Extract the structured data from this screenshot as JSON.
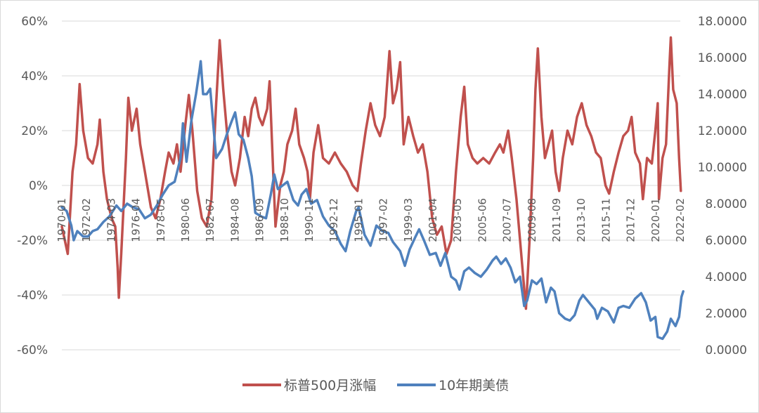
{
  "chart_data": {
    "type": "line",
    "title": "",
    "xlabel": "",
    "ylabel_left": "",
    "ylabel_right": "",
    "x_tick_labels": [
      "1970-01",
      "1972-02",
      "1974-03",
      "1976-04",
      "1978-05",
      "1980-06",
      "1982-07",
      "1984-08",
      "1986-09",
      "1988-10",
      "1990-11",
      "1992-12",
      "1995-01",
      "1997-02",
      "1999-03",
      "2001-04",
      "2003-05",
      "2005-06",
      "2007-07",
      "2009-08",
      "2011-09",
      "2013-10",
      "2015-11",
      "2017-12",
      "2020-01",
      "2022-02"
    ],
    "y_left": {
      "min": -0.6,
      "max": 0.6,
      "ticks": [
        -0.6,
        -0.4,
        -0.2,
        0,
        0.2,
        0.4,
        0.6
      ],
      "tick_labels": [
        "-60%",
        "-40%",
        "-20%",
        "0%",
        "20%",
        "40%",
        "60%"
      ]
    },
    "y_right": {
      "min": 0,
      "max": 18,
      "ticks": [
        0,
        2,
        4,
        6,
        8,
        10,
        12,
        14,
        16,
        18
      ],
      "tick_labels": [
        "0.0000",
        "2.0000",
        "4.0000",
        "6.0000",
        "8.0000",
        "10.0000",
        "12.0000",
        "14.0000",
        "16.0000",
        "18.0000"
      ]
    },
    "grid": true,
    "legend_position": "bottom",
    "series": [
      {
        "name": "标普500月涨幅",
        "color": "#c0504d",
        "axis": "left",
        "points": [
          [
            1970.0,
            -0.15
          ],
          [
            1970.5,
            -0.25
          ],
          [
            1970.9,
            0.05
          ],
          [
            1971.2,
            0.15
          ],
          [
            1971.5,
            0.37
          ],
          [
            1971.8,
            0.2
          ],
          [
            1972.2,
            0.1
          ],
          [
            1972.6,
            0.08
          ],
          [
            1973.0,
            0.15
          ],
          [
            1973.2,
            0.24
          ],
          [
            1973.5,
            0.05
          ],
          [
            1973.8,
            -0.05
          ],
          [
            1974.2,
            -0.12
          ],
          [
            1974.5,
            -0.15
          ],
          [
            1974.7,
            -0.3
          ],
          [
            1974.8,
            -0.41
          ],
          [
            1975.0,
            -0.25
          ],
          [
            1975.4,
            0.1
          ],
          [
            1975.6,
            0.32
          ],
          [
            1975.9,
            0.2
          ],
          [
            1976.3,
            0.28
          ],
          [
            1976.6,
            0.15
          ],
          [
            1977.0,
            0.05
          ],
          [
            1977.5,
            -0.08
          ],
          [
            1977.9,
            -0.12
          ],
          [
            1978.3,
            -0.05
          ],
          [
            1978.7,
            0.05
          ],
          [
            1979.0,
            0.12
          ],
          [
            1979.4,
            0.08
          ],
          [
            1979.7,
            0.15
          ],
          [
            1980.0,
            0.05
          ],
          [
            1980.4,
            0.22
          ],
          [
            1980.7,
            0.33
          ],
          [
            1981.0,
            0.2
          ],
          [
            1981.4,
            -0.02
          ],
          [
            1981.8,
            -0.12
          ],
          [
            1982.2,
            -0.15
          ],
          [
            1982.6,
            -0.05
          ],
          [
            1983.0,
            0.3
          ],
          [
            1983.3,
            0.53
          ],
          [
            1983.6,
            0.35
          ],
          [
            1983.9,
            0.2
          ],
          [
            1984.3,
            0.05
          ],
          [
            1984.6,
            0.0
          ],
          [
            1985.0,
            0.1
          ],
          [
            1985.4,
            0.25
          ],
          [
            1985.7,
            0.18
          ],
          [
            1986.0,
            0.28
          ],
          [
            1986.3,
            0.32
          ],
          [
            1986.6,
            0.25
          ],
          [
            1986.9,
            0.22
          ],
          [
            1987.3,
            0.28
          ],
          [
            1987.5,
            0.38
          ],
          [
            1987.8,
            0.05
          ],
          [
            1988.0,
            -0.15
          ],
          [
            1988.4,
            0.0
          ],
          [
            1988.7,
            0.05
          ],
          [
            1989.0,
            0.15
          ],
          [
            1989.4,
            0.2
          ],
          [
            1989.7,
            0.28
          ],
          [
            1990.0,
            0.15
          ],
          [
            1990.4,
            0.1
          ],
          [
            1990.7,
            0.05
          ],
          [
            1990.9,
            -0.05
          ],
          [
            1991.2,
            0.12
          ],
          [
            1991.6,
            0.22
          ],
          [
            1992.0,
            0.1
          ],
          [
            1992.5,
            0.08
          ],
          [
            1993.0,
            0.12
          ],
          [
            1993.5,
            0.08
          ],
          [
            1994.0,
            0.05
          ],
          [
            1994.5,
            0.0
          ],
          [
            1994.9,
            -0.02
          ],
          [
            1995.2,
            0.08
          ],
          [
            1995.6,
            0.2
          ],
          [
            1996.0,
            0.3
          ],
          [
            1996.4,
            0.22
          ],
          [
            1996.8,
            0.18
          ],
          [
            1997.2,
            0.25
          ],
          [
            1997.6,
            0.49
          ],
          [
            1997.9,
            0.3
          ],
          [
            1998.2,
            0.35
          ],
          [
            1998.5,
            0.45
          ],
          [
            1998.8,
            0.15
          ],
          [
            1999.2,
            0.25
          ],
          [
            1999.6,
            0.18
          ],
          [
            2000.0,
            0.12
          ],
          [
            2000.4,
            0.15
          ],
          [
            2000.8,
            0.05
          ],
          [
            2001.2,
            -0.12
          ],
          [
            2001.6,
            -0.18
          ],
          [
            2002.0,
            -0.15
          ],
          [
            2002.4,
            -0.25
          ],
          [
            2002.8,
            -0.2
          ],
          [
            2003.2,
            0.05
          ],
          [
            2003.6,
            0.25
          ],
          [
            2003.9,
            0.36
          ],
          [
            2004.2,
            0.15
          ],
          [
            2004.6,
            0.1
          ],
          [
            2005.0,
            0.08
          ],
          [
            2005.5,
            0.1
          ],
          [
            2006.0,
            0.08
          ],
          [
            2006.5,
            0.12
          ],
          [
            2006.9,
            0.15
          ],
          [
            2007.2,
            0.12
          ],
          [
            2007.6,
            0.2
          ],
          [
            2007.9,
            0.1
          ],
          [
            2008.3,
            -0.05
          ],
          [
            2008.6,
            -0.2
          ],
          [
            2008.9,
            -0.35
          ],
          [
            2009.1,
            -0.45
          ],
          [
            2009.4,
            -0.2
          ],
          [
            2009.7,
            0.1
          ],
          [
            2009.9,
            0.35
          ],
          [
            2010.1,
            0.5
          ],
          [
            2010.4,
            0.25
          ],
          [
            2010.7,
            0.1
          ],
          [
            2011.0,
            0.15
          ],
          [
            2011.3,
            0.2
          ],
          [
            2011.6,
            0.05
          ],
          [
            2011.9,
            -0.02
          ],
          [
            2012.2,
            0.1
          ],
          [
            2012.6,
            0.2
          ],
          [
            2013.0,
            0.15
          ],
          [
            2013.4,
            0.25
          ],
          [
            2013.8,
            0.3
          ],
          [
            2014.2,
            0.22
          ],
          [
            2014.6,
            0.18
          ],
          [
            2015.0,
            0.12
          ],
          [
            2015.4,
            0.1
          ],
          [
            2015.8,
            0.0
          ],
          [
            2016.1,
            -0.03
          ],
          [
            2016.5,
            0.05
          ],
          [
            2016.9,
            0.12
          ],
          [
            2017.3,
            0.18
          ],
          [
            2017.7,
            0.2
          ],
          [
            2018.0,
            0.25
          ],
          [
            2018.3,
            0.12
          ],
          [
            2018.7,
            0.08
          ],
          [
            2018.95,
            -0.05
          ],
          [
            2019.3,
            0.1
          ],
          [
            2019.7,
            0.08
          ],
          [
            2020.0,
            0.2
          ],
          [
            2020.2,
            0.3
          ],
          [
            2020.3,
            -0.05
          ],
          [
            2020.6,
            0.1
          ],
          [
            2020.9,
            0.15
          ],
          [
            2021.2,
            0.45
          ],
          [
            2021.3,
            0.54
          ],
          [
            2021.5,
            0.35
          ],
          [
            2021.8,
            0.3
          ],
          [
            2022.0,
            0.1
          ],
          [
            2022.15,
            -0.02
          ]
        ]
      },
      {
        "name": "10年期美债",
        "color": "#4f81bd",
        "axis": "right",
        "points": [
          [
            1970.0,
            7.8
          ],
          [
            1970.4,
            7.6
          ],
          [
            1970.8,
            6.8
          ],
          [
            1971.0,
            6.0
          ],
          [
            1971.3,
            6.5
          ],
          [
            1971.8,
            6.2
          ],
          [
            1972.2,
            6.2
          ],
          [
            1972.6,
            6.5
          ],
          [
            1973.0,
            6.6
          ],
          [
            1973.5,
            7.0
          ],
          [
            1974.0,
            7.3
          ],
          [
            1974.6,
            7.9
          ],
          [
            1975.0,
            7.6
          ],
          [
            1975.5,
            8.0
          ],
          [
            1976.0,
            7.8
          ],
          [
            1976.5,
            7.7
          ],
          [
            1977.0,
            7.2
          ],
          [
            1977.5,
            7.4
          ],
          [
            1978.0,
            7.9
          ],
          [
            1978.5,
            8.5
          ],
          [
            1979.0,
            9.0
          ],
          [
            1979.5,
            9.2
          ],
          [
            1980.0,
            10.5
          ],
          [
            1980.2,
            12.4
          ],
          [
            1980.5,
            10.3
          ],
          [
            1980.9,
            12.5
          ],
          [
            1981.3,
            14.0
          ],
          [
            1981.6,
            15.3
          ],
          [
            1981.7,
            15.8
          ],
          [
            1981.9,
            14.0
          ],
          [
            1982.2,
            14.0
          ],
          [
            1982.5,
            14.3
          ],
          [
            1982.8,
            12.0
          ],
          [
            1983.0,
            10.5
          ],
          [
            1983.5,
            11.0
          ],
          [
            1983.9,
            11.8
          ],
          [
            1984.3,
            12.5
          ],
          [
            1984.6,
            13.0
          ],
          [
            1984.9,
            11.8
          ],
          [
            1985.3,
            11.5
          ],
          [
            1985.7,
            10.5
          ],
          [
            1986.0,
            9.5
          ],
          [
            1986.3,
            7.5
          ],
          [
            1986.8,
            7.3
          ],
          [
            1987.2,
            7.2
          ],
          [
            1987.6,
            8.5
          ],
          [
            1987.9,
            9.6
          ],
          [
            1988.2,
            8.8
          ],
          [
            1988.6,
            9.0
          ],
          [
            1989.0,
            9.2
          ],
          [
            1989.5,
            8.2
          ],
          [
            1989.9,
            7.9
          ],
          [
            1990.2,
            8.5
          ],
          [
            1990.6,
            8.8
          ],
          [
            1991.0,
            8.0
          ],
          [
            1991.5,
            8.2
          ],
          [
            1992.0,
            7.3
          ],
          [
            1992.5,
            6.8
          ],
          [
            1993.0,
            6.5
          ],
          [
            1993.5,
            5.8
          ],
          [
            1993.9,
            5.4
          ],
          [
            1994.3,
            6.5
          ],
          [
            1994.8,
            7.6
          ],
          [
            1995.0,
            7.8
          ],
          [
            1995.5,
            6.3
          ],
          [
            1996.0,
            5.7
          ],
          [
            1996.5,
            6.8
          ],
          [
            1997.0,
            6.5
          ],
          [
            1997.5,
            6.4
          ],
          [
            1997.9,
            5.9
          ],
          [
            1998.5,
            5.4
          ],
          [
            1998.9,
            4.6
          ],
          [
            1999.3,
            5.5
          ],
          [
            1999.8,
            6.2
          ],
          [
            2000.1,
            6.6
          ],
          [
            2000.5,
            6.0
          ],
          [
            2001.0,
            5.2
          ],
          [
            2001.5,
            5.3
          ],
          [
            2001.9,
            4.6
          ],
          [
            2002.3,
            5.3
          ],
          [
            2002.8,
            4.0
          ],
          [
            2003.2,
            3.8
          ],
          [
            2003.5,
            3.3
          ],
          [
            2003.9,
            4.3
          ],
          [
            2004.3,
            4.5
          ],
          [
            2004.8,
            4.2
          ],
          [
            2005.3,
            4.0
          ],
          [
            2005.8,
            4.4
          ],
          [
            2006.3,
            4.9
          ],
          [
            2006.6,
            5.1
          ],
          [
            2007.0,
            4.7
          ],
          [
            2007.4,
            5.0
          ],
          [
            2007.8,
            4.5
          ],
          [
            2008.2,
            3.7
          ],
          [
            2008.6,
            4.0
          ],
          [
            2008.95,
            2.4
          ],
          [
            2009.2,
            2.7
          ],
          [
            2009.6,
            3.8
          ],
          [
            2010.0,
            3.6
          ],
          [
            2010.4,
            3.9
          ],
          [
            2010.8,
            2.6
          ],
          [
            2011.2,
            3.4
          ],
          [
            2011.5,
            3.2
          ],
          [
            2011.9,
            2.0
          ],
          [
            2012.4,
            1.7
          ],
          [
            2012.8,
            1.6
          ],
          [
            2013.2,
            1.9
          ],
          [
            2013.6,
            2.7
          ],
          [
            2013.9,
            3.0
          ],
          [
            2014.4,
            2.6
          ],
          [
            2014.9,
            2.2
          ],
          [
            2015.1,
            1.7
          ],
          [
            2015.5,
            2.3
          ],
          [
            2016.0,
            2.1
          ],
          [
            2016.5,
            1.5
          ],
          [
            2016.9,
            2.3
          ],
          [
            2017.3,
            2.4
          ],
          [
            2017.8,
            2.3
          ],
          [
            2018.3,
            2.8
          ],
          [
            2018.8,
            3.1
          ],
          [
            2019.2,
            2.6
          ],
          [
            2019.6,
            1.6
          ],
          [
            2020.0,
            1.8
          ],
          [
            2020.2,
            0.7
          ],
          [
            2020.6,
            0.6
          ],
          [
            2021.0,
            1.0
          ],
          [
            2021.3,
            1.7
          ],
          [
            2021.7,
            1.3
          ],
          [
            2022.0,
            1.8
          ],
          [
            2022.2,
            2.9
          ],
          [
            2022.35,
            3.2
          ]
        ]
      }
    ]
  }
}
